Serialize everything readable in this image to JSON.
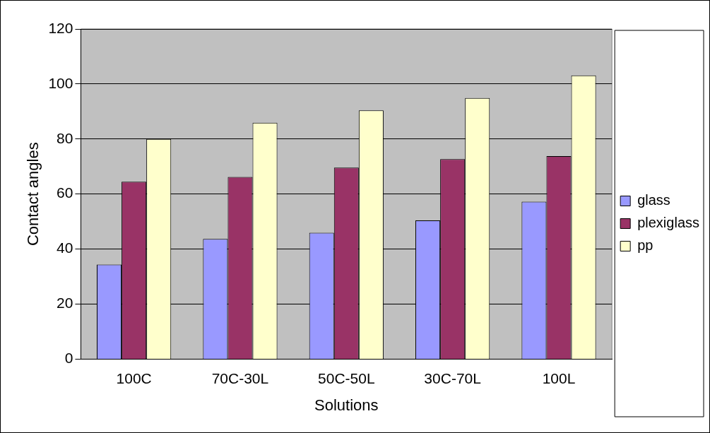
{
  "chart_data": {
    "type": "bar",
    "xlabel": "Solutions",
    "ylabel": "Contact angles",
    "categories": [
      "100C",
      "70C-30L",
      "50C-50L",
      "30C-70L",
      "100L"
    ],
    "series": [
      {
        "name": "glass",
        "color": "#9999ff",
        "values": [
          34.4,
          43.7,
          45.9,
          50.4,
          57.2
        ]
      },
      {
        "name": "plexiglass",
        "color": "#993366",
        "values": [
          64.5,
          66.2,
          69.6,
          72.7,
          73.8
        ]
      },
      {
        "name": "pp",
        "color": "#ffffcc",
        "values": [
          80,
          85.9,
          90.4,
          94.9,
          103.1
        ]
      }
    ],
    "ylim": [
      0,
      120
    ],
    "yticks": [
      0,
      20,
      40,
      60,
      80,
      100,
      120
    ],
    "grid": "y",
    "legend": "right"
  }
}
